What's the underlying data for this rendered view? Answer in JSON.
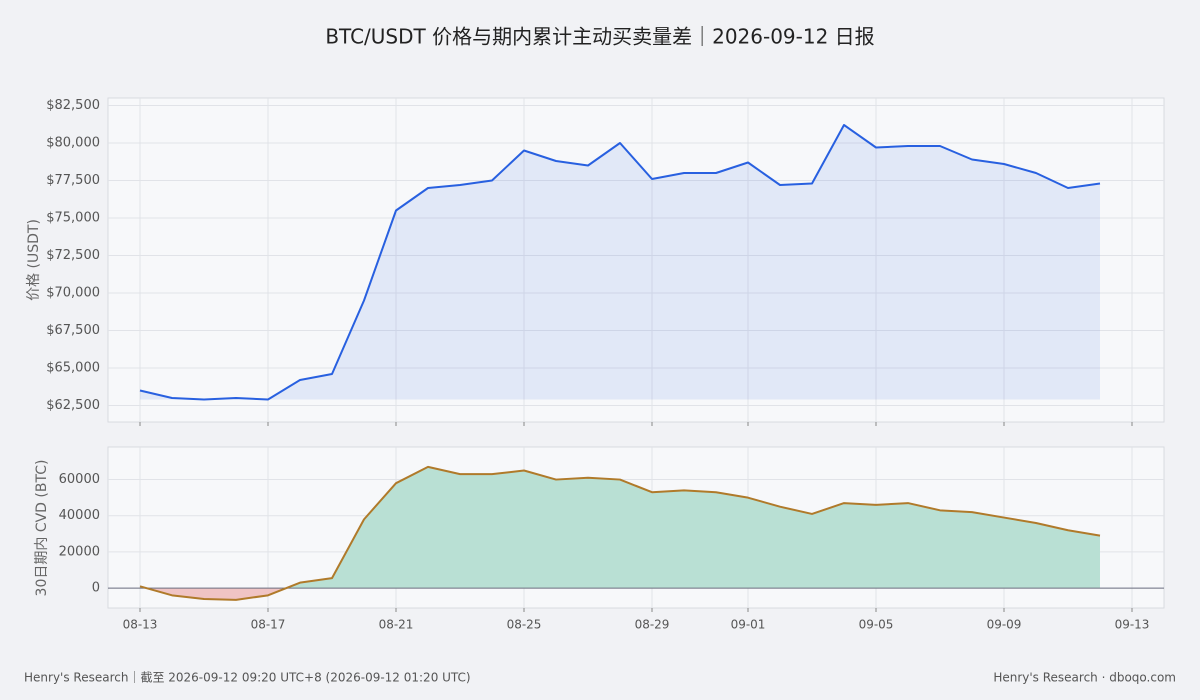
{
  "chart_data": [
    {
      "type": "area",
      "title": "BTC/USDT 价格与期内累计主动买卖量差｜2026-09-12 日报",
      "ylabel": "价格 (USDT)",
      "x": [
        "08-13",
        "08-14",
        "08-15",
        "08-16",
        "08-17",
        "08-18",
        "08-19",
        "08-20",
        "08-21",
        "08-22",
        "08-23",
        "08-24",
        "08-25",
        "08-26",
        "08-27",
        "08-28",
        "08-29",
        "08-30",
        "08-31",
        "09-01",
        "09-02",
        "09-03",
        "09-04",
        "09-05",
        "09-06",
        "09-07",
        "09-08",
        "09-09",
        "09-10",
        "09-11",
        "09-12"
      ],
      "series": [
        {
          "name": "BTC/USDT",
          "color": "#2860e0",
          "values": [
            63500,
            63000,
            62900,
            63000,
            62900,
            64200,
            64600,
            69500,
            75500,
            77000,
            77200,
            77500,
            79500,
            78800,
            78500,
            80000,
            77600,
            78000,
            78000,
            78700,
            77200,
            77300,
            81200,
            79700,
            79800,
            79800,
            78900,
            78600,
            78000,
            77000,
            77300
          ]
        }
      ],
      "xlim": [
        "08-12",
        "09-14"
      ],
      "ylim": [
        61400,
        83000
      ],
      "yticks": [
        {
          "value": 62500,
          "label": "$62,500"
        },
        {
          "value": 65000,
          "label": "$65,000"
        },
        {
          "value": 67500,
          "label": "$67,500"
        },
        {
          "value": 70000,
          "label": "$70,000"
        },
        {
          "value": 72500,
          "label": "$72,500"
        },
        {
          "value": 75000,
          "label": "$75,000"
        },
        {
          "value": 77500,
          "label": "$77,500"
        },
        {
          "value": 80000,
          "label": "$80,000"
        },
        {
          "value": 82500,
          "label": "$82,500"
        }
      ],
      "xticks": [
        "08-13",
        "08-17",
        "08-21",
        "08-25",
        "08-29",
        "09-01",
        "09-05",
        "09-09",
        "09-13"
      ],
      "grid": true
    },
    {
      "type": "area",
      "ylabel": "30日期内 CVD (BTC)",
      "x": [
        "08-13",
        "08-14",
        "08-15",
        "08-16",
        "08-17",
        "08-18",
        "08-19",
        "08-20",
        "08-21",
        "08-22",
        "08-23",
        "08-24",
        "08-25",
        "08-26",
        "08-27",
        "08-28",
        "08-29",
        "08-30",
        "08-31",
        "09-01",
        "09-02",
        "09-03",
        "09-04",
        "09-05",
        "09-06",
        "09-07",
        "09-08",
        "09-09",
        "09-10",
        "09-11",
        "09-12"
      ],
      "series": [
        {
          "name": "CVD",
          "color": "#b07a2a",
          "values": [
            1000,
            -4000,
            -6000,
            -6500,
            -4000,
            3000,
            5500,
            38000,
            58000,
            67000,
            63000,
            63000,
            65000,
            60000,
            61000,
            60000,
            53000,
            54000,
            53000,
            50000,
            45000,
            41000,
            47000,
            46000,
            47000,
            43000,
            42000,
            39000,
            36000,
            32000,
            29000
          ]
        }
      ],
      "positive_color": "#b9e0d4",
      "negative_color": "#f0c4c4",
      "xlim": [
        "08-12",
        "09-14"
      ],
      "ylim": [
        -11000,
        78000
      ],
      "yticks": [
        0,
        20000,
        40000,
        60000
      ],
      "xticks": [
        "08-13",
        "08-17",
        "08-21",
        "08-25",
        "08-29",
        "09-01",
        "09-05",
        "09-09",
        "09-13"
      ],
      "grid": true
    }
  ],
  "footer": {
    "left": "Henry's Research｜截至 2026-09-12 09:20 UTC+8 (2026-09-12 01:20 UTC)",
    "right": "Henry's Research · dboqo.com"
  }
}
